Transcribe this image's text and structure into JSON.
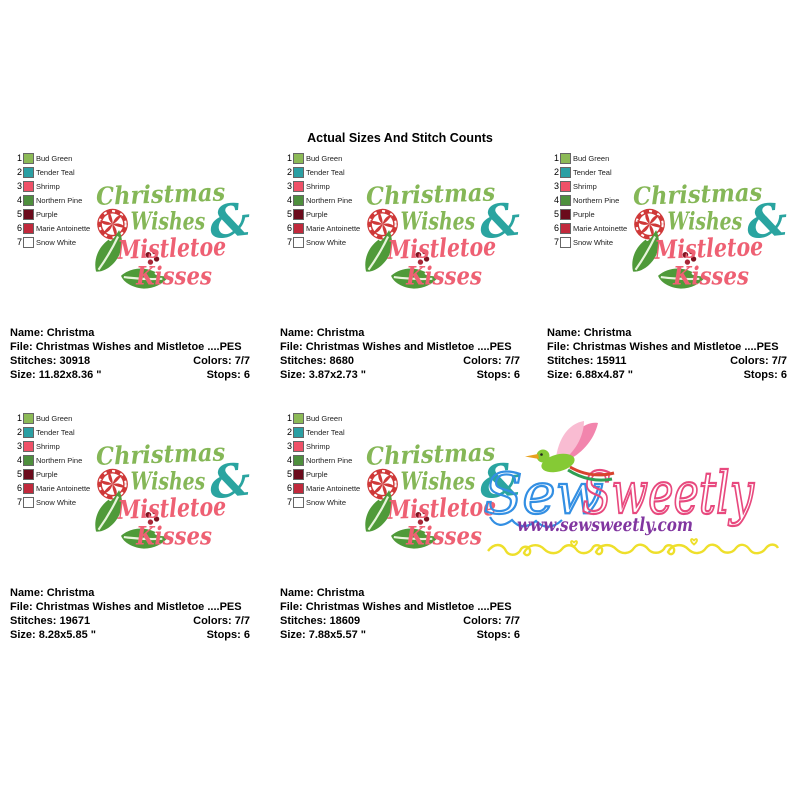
{
  "title": "Actual Sizes And Stitch Counts",
  "labels": {
    "name": "Name:",
    "file": "File:",
    "stitches": "Stitches:",
    "colors": "Colors:",
    "size": "Size:",
    "stops": "Stops:"
  },
  "legend": {
    "colors": [
      {
        "num": "1",
        "name": "Bud Green",
        "hex": "#8cba57"
      },
      {
        "num": "2",
        "name": "Tender Teal",
        "hex": "#2ba0a4"
      },
      {
        "num": "3",
        "name": "Shrimp",
        "hex": "#ef5168"
      },
      {
        "num": "4",
        "name": "Northern Pine",
        "hex": "#4e8f3d"
      },
      {
        "num": "5",
        "name": "Purple",
        "hex": "#6b0b1c"
      },
      {
        "num": "6",
        "name": "Marie Antoinette",
        "hex": "#c1293c"
      },
      {
        "num": "7",
        "name": "Snow White",
        "hex": "#ffffff"
      }
    ]
  },
  "design": {
    "word1": "Christmas",
    "word2": "Wishes",
    "ampersand": "&",
    "word3": "Mistletoe",
    "word4": "Kisses",
    "colors": {
      "green": "#85b757",
      "teal": "#2aa4a0",
      "pink": "#ee6073",
      "candy_red": "#cf3838",
      "holly_green": "#4f9a39",
      "holly_vein": "#e8f5dc",
      "berry_dark": "#7e1220",
      "berry_red": "#a82837"
    }
  },
  "panels": [
    {
      "name": "Christma",
      "file": "Christmas Wishes and Mistletoe ....PES",
      "stitches": "30918",
      "colors": "7/7",
      "size": "11.82x8.36 \"",
      "stops": "6"
    },
    {
      "name": "Christma",
      "file": "Christmas Wishes and Mistletoe ....PES",
      "stitches": "8680",
      "colors": "7/7",
      "size": "3.87x2.73 \"",
      "stops": "6"
    },
    {
      "name": "Christma",
      "file": "Christmas Wishes and Mistletoe ....PES",
      "stitches": "15911",
      "colors": "7/7",
      "size": "6.88x4.87 \"",
      "stops": "6"
    },
    {
      "name": "Christma",
      "file": "Christmas Wishes and Mistletoe ....PES",
      "stitches": "19671",
      "colors": "7/7",
      "size": "8.28x5.85 \"",
      "stops": "6"
    },
    {
      "name": "Christma",
      "file": "Christmas Wishes and Mistletoe ....PES",
      "stitches": "18609",
      "colors": "7/7",
      "size": "7.88x5.57 \"",
      "stops": "6"
    }
  ],
  "watermark": {
    "script_sew": "Sew",
    "script_sweetly": "Sweetly",
    "url": "www.sewsweetly.com",
    "colors": {
      "blue": "#338fe3",
      "pink": "#e8497e",
      "purple": "#8136a0",
      "yellow": "#eedf2b",
      "bird_green": "#85ca35",
      "wing_pink": "#f9bcd2",
      "wing_dark_pink": "#f285ad",
      "tail_red": "#d8432f",
      "tail_green": "#2f9e53",
      "beak_orange": "#e8a21f"
    }
  }
}
